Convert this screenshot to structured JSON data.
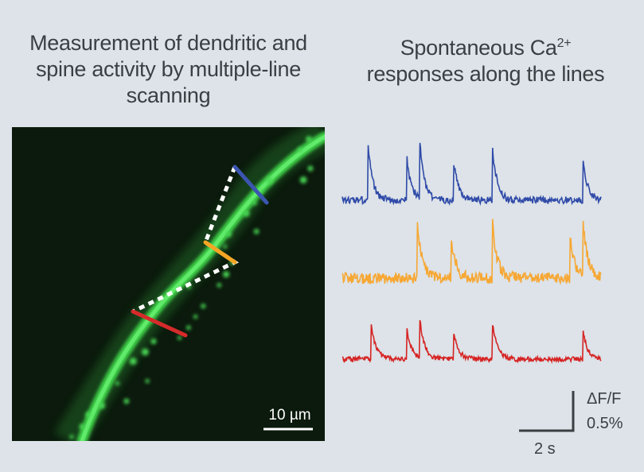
{
  "left_title": {
    "line1": "Measurement of dendritic and",
    "line2": "spine activity by multiple-line",
    "line3": "scanning"
  },
  "right_title": {
    "line1_prefix": "Spontaneous Ca",
    "line1_sup": "2+",
    "line2": "responses along the lines"
  },
  "micrograph": {
    "scale_label": "10 µm",
    "scan_lines": [
      {
        "name": "blue",
        "color": "#3b55b0"
      },
      {
        "name": "orange",
        "color": "#f5a623"
      },
      {
        "name": "red",
        "color": "#d62b2b"
      }
    ]
  },
  "traces": [
    {
      "name": "blue",
      "color": "#2f4aa8",
      "peaks": [
        0.1,
        0.25,
        0.3,
        0.43,
        0.58,
        0.93
      ]
    },
    {
      "name": "orange",
      "color": "#f7a733",
      "peaks": [
        0.29,
        0.42,
        0.58,
        0.88,
        0.93
      ]
    },
    {
      "name": "red",
      "color": "#d62424",
      "peaks": [
        0.11,
        0.25,
        0.3,
        0.43,
        0.58,
        0.93
      ]
    }
  ],
  "scale_bar": {
    "y_label_line1": "ΔF/F",
    "y_label_line2": "0.5%",
    "x_label": "2 s"
  }
}
